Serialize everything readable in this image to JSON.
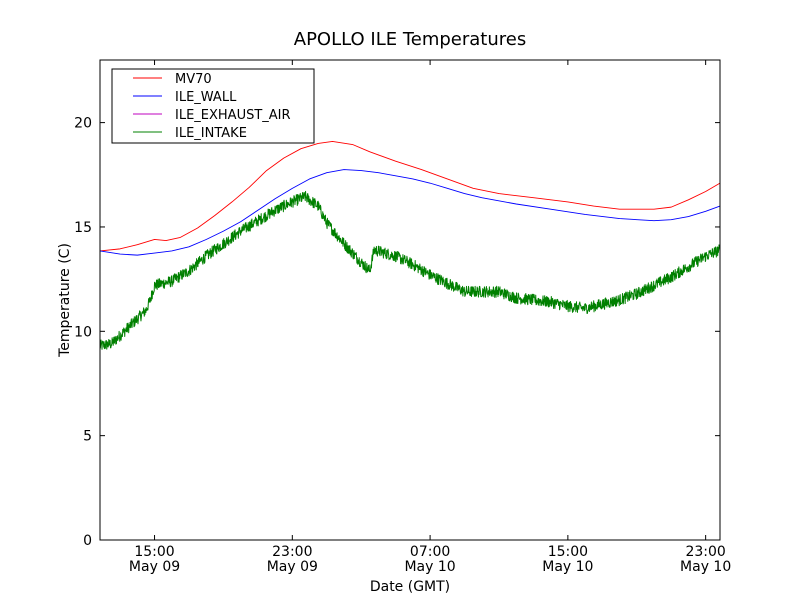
{
  "chart_data": {
    "type": "line",
    "title": "APOLLO ILE Temperatures",
    "xlabel": "Date (GMT)",
    "ylabel": "Temperature (C)",
    "ylim": [
      0,
      23
    ],
    "xlim": [
      "2009-05-09 11:50",
      "2009-05-10 23:50"
    ],
    "yticks": [
      0,
      5,
      10,
      15,
      20
    ],
    "xticks": [
      {
        "at": "2009-05-09 15:00",
        "time": "15:00",
        "date": "May 09"
      },
      {
        "at": "2009-05-09 23:00",
        "time": "23:00",
        "date": "May 09"
      },
      {
        "at": "2009-05-10 07:00",
        "time": "07:00",
        "date": "May 10"
      },
      {
        "at": "2009-05-10 15:00",
        "time": "15:00",
        "date": "May 10"
      },
      {
        "at": "2009-05-10 23:00",
        "time": "23:00",
        "date": "May 10"
      }
    ],
    "grid": false,
    "legend": "top-left",
    "series": [
      {
        "name": "MV70",
        "color": "#ff0000",
        "points": [
          [
            "2009-05-09 11:50",
            13.85
          ],
          [
            "2009-05-09 13:00",
            13.95
          ],
          [
            "2009-05-09 14:00",
            14.15
          ],
          [
            "2009-05-09 15:00",
            14.4
          ],
          [
            "2009-05-09 15:40",
            14.35
          ],
          [
            "2009-05-09 16:30",
            14.5
          ],
          [
            "2009-05-09 17:30",
            14.95
          ],
          [
            "2009-05-09 18:30",
            15.55
          ],
          [
            "2009-05-09 19:30",
            16.2
          ],
          [
            "2009-05-09 20:30",
            16.9
          ],
          [
            "2009-05-09 21:30",
            17.7
          ],
          [
            "2009-05-09 22:30",
            18.3
          ],
          [
            "2009-05-09 23:30",
            18.75
          ],
          [
            "2009-05-10 00:30",
            19.0
          ],
          [
            "2009-05-10 01:20",
            19.1
          ],
          [
            "2009-05-10 02:30",
            18.95
          ],
          [
            "2009-05-10 03:30",
            18.6
          ],
          [
            "2009-05-10 05:00",
            18.15
          ],
          [
            "2009-05-10 06:30",
            17.75
          ],
          [
            "2009-05-10 08:00",
            17.3
          ],
          [
            "2009-05-10 09:30",
            16.85
          ],
          [
            "2009-05-10 11:00",
            16.6
          ],
          [
            "2009-05-10 13:00",
            16.4
          ],
          [
            "2009-05-10 15:00",
            16.2
          ],
          [
            "2009-05-10 16:30",
            16.0
          ],
          [
            "2009-05-10 18:00",
            15.85
          ],
          [
            "2009-05-10 20:00",
            15.85
          ],
          [
            "2009-05-10 21:00",
            15.95
          ],
          [
            "2009-05-10 22:00",
            16.3
          ],
          [
            "2009-05-10 23:00",
            16.7
          ],
          [
            "2009-05-10 23:50",
            17.1
          ]
        ]
      },
      {
        "name": "ILE_WALL",
        "color": "#0000ff",
        "points": [
          [
            "2009-05-09 11:50",
            13.85
          ],
          [
            "2009-05-09 13:00",
            13.7
          ],
          [
            "2009-05-09 14:00",
            13.65
          ],
          [
            "2009-05-09 15:00",
            13.75
          ],
          [
            "2009-05-09 16:00",
            13.85
          ],
          [
            "2009-05-09 17:00",
            14.05
          ],
          [
            "2009-05-09 18:00",
            14.4
          ],
          [
            "2009-05-09 19:00",
            14.8
          ],
          [
            "2009-05-09 20:00",
            15.25
          ],
          [
            "2009-05-09 21:00",
            15.8
          ],
          [
            "2009-05-09 22:00",
            16.35
          ],
          [
            "2009-05-09 23:00",
            16.85
          ],
          [
            "2009-05-10 00:00",
            17.3
          ],
          [
            "2009-05-10 01:00",
            17.6
          ],
          [
            "2009-05-10 02:00",
            17.75
          ],
          [
            "2009-05-10 03:00",
            17.7
          ],
          [
            "2009-05-10 04:00",
            17.6
          ],
          [
            "2009-05-10 05:00",
            17.45
          ],
          [
            "2009-05-10 06:00",
            17.3
          ],
          [
            "2009-05-10 07:00",
            17.1
          ],
          [
            "2009-05-10 08:00",
            16.85
          ],
          [
            "2009-05-10 09:00",
            16.6
          ],
          [
            "2009-05-10 10:00",
            16.4
          ],
          [
            "2009-05-10 12:00",
            16.1
          ],
          [
            "2009-05-10 14:00",
            15.85
          ],
          [
            "2009-05-10 16:00",
            15.6
          ],
          [
            "2009-05-10 18:00",
            15.4
          ],
          [
            "2009-05-10 20:00",
            15.3
          ],
          [
            "2009-05-10 21:00",
            15.35
          ],
          [
            "2009-05-10 22:00",
            15.5
          ],
          [
            "2009-05-10 23:00",
            15.75
          ],
          [
            "2009-05-10 23:50",
            16.0
          ]
        ]
      },
      {
        "name": "ILE_EXHAUST_AIR",
        "color": "#bf00bf",
        "points": []
      },
      {
        "name": "ILE_INTAKE",
        "color": "#008000",
        "noisy": true,
        "points": [
          [
            "2009-05-09 11:50",
            9.3
          ],
          [
            "2009-05-09 12:30",
            9.4
          ],
          [
            "2009-05-09 13:00",
            9.8
          ],
          [
            "2009-05-09 13:30",
            10.2
          ],
          [
            "2009-05-09 14:00",
            10.6
          ],
          [
            "2009-05-09 14:30",
            11.0
          ],
          [
            "2009-05-09 14:45",
            11.5
          ],
          [
            "2009-05-09 15:00",
            12.2
          ],
          [
            "2009-05-09 16:00",
            12.4
          ],
          [
            "2009-05-09 17:00",
            12.9
          ],
          [
            "2009-05-09 18:00",
            13.6
          ],
          [
            "2009-05-09 19:00",
            14.2
          ],
          [
            "2009-05-09 20:00",
            14.8
          ],
          [
            "2009-05-09 21:00",
            15.3
          ],
          [
            "2009-05-09 22:00",
            15.8
          ],
          [
            "2009-05-09 23:00",
            16.2
          ],
          [
            "2009-05-09 23:45",
            16.45
          ],
          [
            "2009-05-10 00:30",
            16.0
          ],
          [
            "2009-05-10 01:00",
            15.2
          ],
          [
            "2009-05-10 02:00",
            14.2
          ],
          [
            "2009-05-10 03:00",
            13.3
          ],
          [
            "2009-05-10 03:30",
            12.9
          ],
          [
            "2009-05-10 03:45",
            13.9
          ],
          [
            "2009-05-10 05:00",
            13.6
          ],
          [
            "2009-05-10 06:00",
            13.2
          ],
          [
            "2009-05-10 07:00",
            12.7
          ],
          [
            "2009-05-10 08:00",
            12.3
          ],
          [
            "2009-05-10 09:00",
            11.9
          ],
          [
            "2009-05-10 10:00",
            11.9
          ],
          [
            "2009-05-10 11:00",
            11.9
          ],
          [
            "2009-05-10 12:00",
            11.6
          ],
          [
            "2009-05-10 13:00",
            11.5
          ],
          [
            "2009-05-10 14:00",
            11.4
          ],
          [
            "2009-05-10 15:00",
            11.2
          ],
          [
            "2009-05-10 16:00",
            11.1
          ],
          [
            "2009-05-10 17:00",
            11.3
          ],
          [
            "2009-05-10 18:00",
            11.5
          ],
          [
            "2009-05-10 19:00",
            11.8
          ],
          [
            "2009-05-10 20:00",
            12.2
          ],
          [
            "2009-05-10 21:00",
            12.6
          ],
          [
            "2009-05-10 22:00",
            13.1
          ],
          [
            "2009-05-10 23:00",
            13.6
          ],
          [
            "2009-05-10 23:50",
            13.9
          ]
        ]
      }
    ]
  }
}
